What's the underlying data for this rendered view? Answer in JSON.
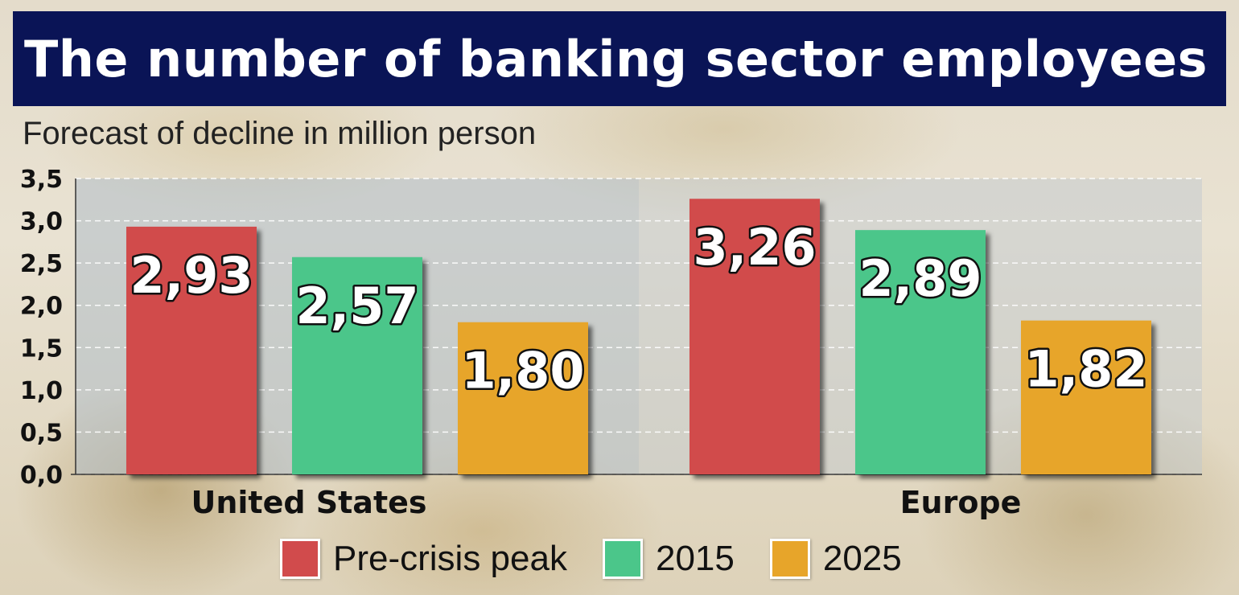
{
  "title": "The number of banking sector employees",
  "subtitle": "Forecast of decline in million person",
  "colors": {
    "title_bg": "#0a1456",
    "pre_crisis": "#d14b4c",
    "y2015": "#4bc68a",
    "y2025": "#e7a52a"
  },
  "chart_data": {
    "type": "bar",
    "categories": [
      "United States",
      "Europe"
    ],
    "series": [
      {
        "name": "Pre-crisis peak",
        "values": [
          2.93,
          3.26
        ],
        "labels": [
          "2,93",
          "3,26"
        ],
        "color": "#d14b4c"
      },
      {
        "name": "2015",
        "values": [
          2.57,
          2.89
        ],
        "labels": [
          "2,57",
          "2,89"
        ],
        "color": "#4bc68a"
      },
      {
        "name": "2025",
        "values": [
          1.8,
          1.82
        ],
        "labels": [
          "1,80",
          "1,82"
        ],
        "color": "#e7a52a"
      }
    ],
    "ylim": [
      0,
      3.5
    ],
    "yticks": [
      0,
      0.5,
      1.0,
      1.5,
      2.0,
      2.5,
      3.0,
      3.5
    ],
    "ytick_labels": [
      "0,0",
      "0,5",
      "1,0",
      "1,5",
      "2,0",
      "2,5",
      "3,0",
      "3,5"
    ],
    "grid": true,
    "legend_position": "bottom"
  }
}
